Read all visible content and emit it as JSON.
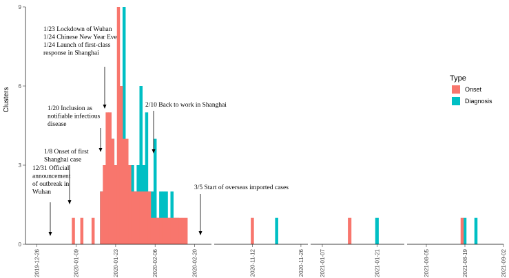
{
  "chart_data": {
    "type": "bar",
    "ylabel": "Clusters",
    "xlabel": "",
    "ylim": [
      0,
      9
    ],
    "y_ticks": [
      "0",
      "3",
      "6",
      "9"
    ],
    "colors": {
      "Onset": "#F8766D",
      "Diagnosis": "#00BFC4"
    },
    "legend": {
      "title": "Type",
      "entries": [
        "Onset",
        "Diagnosis"
      ],
      "position": "right"
    },
    "panels": [
      {
        "date_range": [
          "2019-12-22",
          "2020-02-26"
        ],
        "tick_labels": [
          "2019-12-26",
          "2020-01-09",
          "2020-01-23",
          "2020-02-06",
          "2020-02-20"
        ],
        "series": [
          {
            "name": "Onset",
            "points": [
              {
                "date": "2020-01-08",
                "value": 1
              },
              {
                "date": "2020-01-11",
                "value": 1
              },
              {
                "date": "2020-01-15",
                "value": 1
              },
              {
                "date": "2020-01-18",
                "value": 2
              },
              {
                "date": "2020-01-19",
                "value": 3
              },
              {
                "date": "2020-01-20",
                "value": 5
              },
              {
                "date": "2020-01-21",
                "value": 5
              },
              {
                "date": "2020-01-22",
                "value": 4
              },
              {
                "date": "2020-01-23",
                "value": 3
              },
              {
                "date": "2020-01-24",
                "value": 9
              },
              {
                "date": "2020-01-25",
                "value": 6
              },
              {
                "date": "2020-01-26",
                "value": 4
              },
              {
                "date": "2020-01-27",
                "value": 4
              },
              {
                "date": "2020-01-28",
                "value": 3
              },
              {
                "date": "2020-01-29",
                "value": 2
              },
              {
                "date": "2020-01-30",
                "value": 2
              },
              {
                "date": "2020-01-31",
                "value": 2
              },
              {
                "date": "2020-02-01",
                "value": 2
              },
              {
                "date": "2020-02-02",
                "value": 2
              },
              {
                "date": "2020-02-03",
                "value": 2
              },
              {
                "date": "2020-02-04",
                "value": 2
              },
              {
                "date": "2020-02-05",
                "value": 1
              },
              {
                "date": "2020-02-06",
                "value": 1
              },
              {
                "date": "2020-02-07",
                "value": 1
              },
              {
                "date": "2020-02-08",
                "value": 1
              },
              {
                "date": "2020-02-09",
                "value": 1
              },
              {
                "date": "2020-02-10",
                "value": 1
              },
              {
                "date": "2020-02-11",
                "value": 1
              },
              {
                "date": "2020-02-12",
                "value": 1
              },
              {
                "date": "2020-02-13",
                "value": 1
              },
              {
                "date": "2020-02-14",
                "value": 1
              },
              {
                "date": "2020-02-15",
                "value": 1
              },
              {
                "date": "2020-02-16",
                "value": 1
              },
              {
                "date": "2020-02-17",
                "value": 1
              }
            ]
          },
          {
            "name": "Diagnosis",
            "points": [
              {
                "date": "2020-01-18",
                "value": 2
              },
              {
                "date": "2020-01-19",
                "value": 1
              },
              {
                "date": "2020-01-20",
                "value": 1
              },
              {
                "date": "2020-01-21",
                "value": 2
              },
              {
                "date": "2020-01-22",
                "value": 4
              },
              {
                "date": "2020-01-23",
                "value": 1
              },
              {
                "date": "2020-01-24",
                "value": 3
              },
              {
                "date": "2020-01-25",
                "value": 4
              },
              {
                "date": "2020-01-26",
                "value": 9
              },
              {
                "date": "2020-01-27",
                "value": 2
              },
              {
                "date": "2020-01-28",
                "value": 2
              },
              {
                "date": "2020-01-29",
                "value": 3
              },
              {
                "date": "2020-01-30",
                "value": 2
              },
              {
                "date": "2020-01-31",
                "value": 3
              },
              {
                "date": "2020-02-01",
                "value": 6
              },
              {
                "date": "2020-02-02",
                "value": 3
              },
              {
                "date": "2020-02-03",
                "value": 5
              },
              {
                "date": "2020-02-04",
                "value": 2
              },
              {
                "date": "2020-02-05",
                "value": 2
              },
              {
                "date": "2020-02-06",
                "value": 4
              },
              {
                "date": "2020-02-07",
                "value": 1
              },
              {
                "date": "2020-02-08",
                "value": 2
              },
              {
                "date": "2020-02-09",
                "value": 2
              },
              {
                "date": "2020-02-10",
                "value": 2
              },
              {
                "date": "2020-02-11",
                "value": 1
              },
              {
                "date": "2020-02-12",
                "value": 2
              },
              {
                "date": "2020-02-13",
                "value": 1
              },
              {
                "date": "2020-02-14",
                "value": 1
              }
            ]
          }
        ]
      },
      {
        "date_range": [
          "2020-11-01",
          "2020-11-28"
        ],
        "tick_labels": [
          "2020-11-12",
          "2020-11-26"
        ],
        "series": [
          {
            "name": "Onset",
            "points": [
              {
                "date": "2020-11-12",
                "value": 1
              }
            ]
          },
          {
            "name": "Diagnosis",
            "points": [
              {
                "date": "2020-11-19",
                "value": 1
              }
            ]
          }
        ]
      },
      {
        "date_range": [
          "2021-01-04",
          "2021-01-28"
        ],
        "tick_labels": [
          "2021-01-07",
          "2021-01-21"
        ],
        "series": [
          {
            "name": "Onset",
            "points": [
              {
                "date": "2021-01-14",
                "value": 1
              }
            ]
          },
          {
            "name": "Diagnosis",
            "points": [
              {
                "date": "2021-01-21",
                "value": 1
              }
            ]
          }
        ]
      },
      {
        "date_range": [
          "2021-07-29",
          "2021-09-02"
        ],
        "tick_labels": [
          "2021-08-05",
          "2021-08-19",
          "2021-09-02"
        ],
        "series": [
          {
            "name": "Onset",
            "points": [
              {
                "date": "2021-08-18",
                "value": 1
              }
            ]
          },
          {
            "name": "Diagnosis",
            "points": [
              {
                "date": "2021-08-19",
                "value": 1
              },
              {
                "date": "2021-08-23",
                "value": 1
              }
            ]
          }
        ]
      }
    ],
    "annotations": [
      {
        "date": "2019-12-31",
        "lines": [
          "12/31 Official",
          "announcement",
          "of outbreak in",
          "Wuhan"
        ]
      },
      {
        "date": "2020-01-08",
        "lines": [
          "1/8 Onset of first",
          "Shanghai case"
        ]
      },
      {
        "date": "2020-01-20",
        "lines": [
          "1/20 Inclusion as",
          "notifiable infectious",
          "disease"
        ]
      },
      {
        "date": "2020-01-23",
        "lines": [
          "1/23 Lockdown of Wuhan",
          "1/24 Chinese New Year Eve",
          "1/24 Launch of first-class",
          "response in Shanghai"
        ]
      },
      {
        "date": "2020-02-10",
        "lines": [
          "2/10 Back to work in Shanghai"
        ]
      },
      {
        "date": "2020-03-05",
        "lines": [
          "3/5 Start of overseas imported cases"
        ]
      }
    ]
  }
}
